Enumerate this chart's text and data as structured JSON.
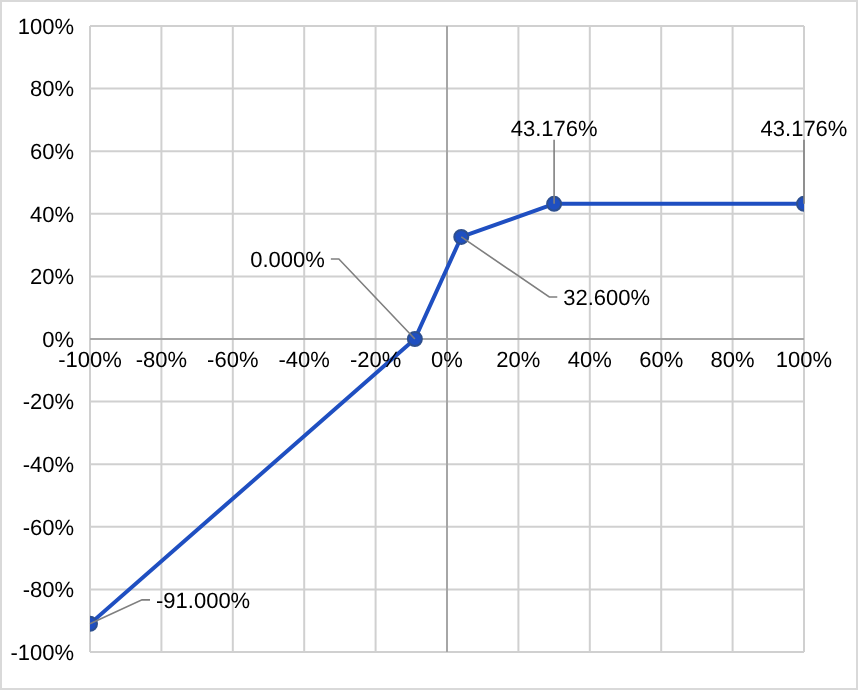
{
  "chart_data": {
    "type": "line",
    "x": [
      -100,
      -9,
      4,
      30,
      100
    ],
    "series": [
      {
        "color": "#1f4fc1",
        "values": [
          -91,
          0,
          32.6,
          43.176,
          43.176
        ],
        "value_labels": [
          "-91.000%",
          "0.000%",
          "32.600%",
          "43.176%",
          "43.176%"
        ]
      }
    ],
    "xlim": [
      -100,
      100
    ],
    "xticks": [
      {
        "value": -100,
        "label": "-100%"
      },
      {
        "value": -80,
        "label": "-80%"
      },
      {
        "value": -60,
        "label": "-60%"
      },
      {
        "value": -40,
        "label": "-40%"
      },
      {
        "value": -20,
        "label": "-20%"
      },
      {
        "value": 0,
        "label": "0%"
      },
      {
        "value": 20,
        "label": "20%"
      },
      {
        "value": 40,
        "label": "40%"
      },
      {
        "value": 60,
        "label": "60%"
      },
      {
        "value": 80,
        "label": "80%"
      },
      {
        "value": 100,
        "label": "100%"
      }
    ],
    "ylim": [
      -100,
      100
    ],
    "yticks": [
      {
        "value": -100,
        "label": "-100%"
      },
      {
        "value": -80,
        "label": "-80%"
      },
      {
        "value": -60,
        "label": "-60%"
      },
      {
        "value": -40,
        "label": "-40%"
      },
      {
        "value": -20,
        "label": "-20%"
      },
      {
        "value": 0,
        "label": "0%"
      },
      {
        "value": 20,
        "label": "20%"
      },
      {
        "value": 40,
        "label": "40%"
      },
      {
        "value": 60,
        "label": "60%"
      },
      {
        "value": 80,
        "label": "80%"
      },
      {
        "value": 100,
        "label": "100%"
      }
    ],
    "grid": true,
    "marker": "circle",
    "line_style": "solid"
  }
}
